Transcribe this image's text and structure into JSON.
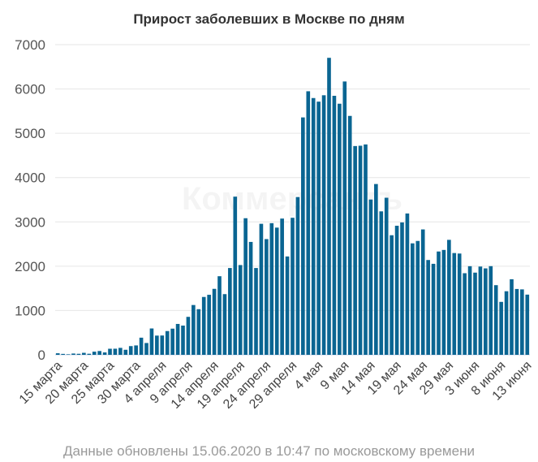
{
  "chart_data": {
    "type": "bar",
    "title": "Прирост заболевших в Москве по дням",
    "xlabel": "",
    "ylabel": "",
    "ylim": [
      0,
      7000
    ],
    "yticks": [
      0,
      1000,
      2000,
      3000,
      4000,
      5000,
      6000,
      7000
    ],
    "grid": true,
    "legend": "none",
    "bar_color": "#0a6592",
    "x_tick_labels": [
      "15 марта",
      "20 марта",
      "25 марта",
      "30 марта",
      "4 апреля",
      "9 апреля",
      "14 апреля",
      "19 апреля",
      "24 апреля",
      "29 апреля",
      "4 мая",
      "9 мая",
      "14 мая",
      "19 мая",
      "24 мая",
      "29 мая",
      "3 июня",
      "8 июня",
      "13 июня"
    ],
    "first_date": "15 марта",
    "values": [
      35,
      21,
      12,
      29,
      23,
      45,
      24,
      71,
      86,
      54,
      137,
      138,
      157,
      114,
      197,
      212,
      387,
      267,
      595,
      434,
      436,
      536,
      591,
      697,
      660,
      857,
      1124,
      1030,
      1306,
      1355,
      1489,
      1774,
      1370,
      1959,
      3570,
      2026,
      3083,
      2548,
      1959,
      2957,
      2612,
      2971,
      2871,
      3075,
      2220,
      3093,
      3561,
      5358,
      5948,
      5795,
      5714,
      5858,
      6703,
      5846,
      5667,
      6169,
      5392,
      4712,
      4719,
      4748,
      3505,
      3855,
      3238,
      3545,
      2699,
      2913,
      2988,
      3190,
      2516,
      2570,
      2830,
      2140,
      2054,
      2332,
      2367,
      2595,
      2297,
      2286,
      1842,
      2000,
      1855,
      1992,
      1951,
      2001,
      1572,
      1195,
      1435,
      1706,
      1486,
      1477,
      1359
    ]
  },
  "watermark": "Коммерсантъ",
  "footnote": "Данные обновлены 15.06.2020 в 10:47 по московскому времени"
}
